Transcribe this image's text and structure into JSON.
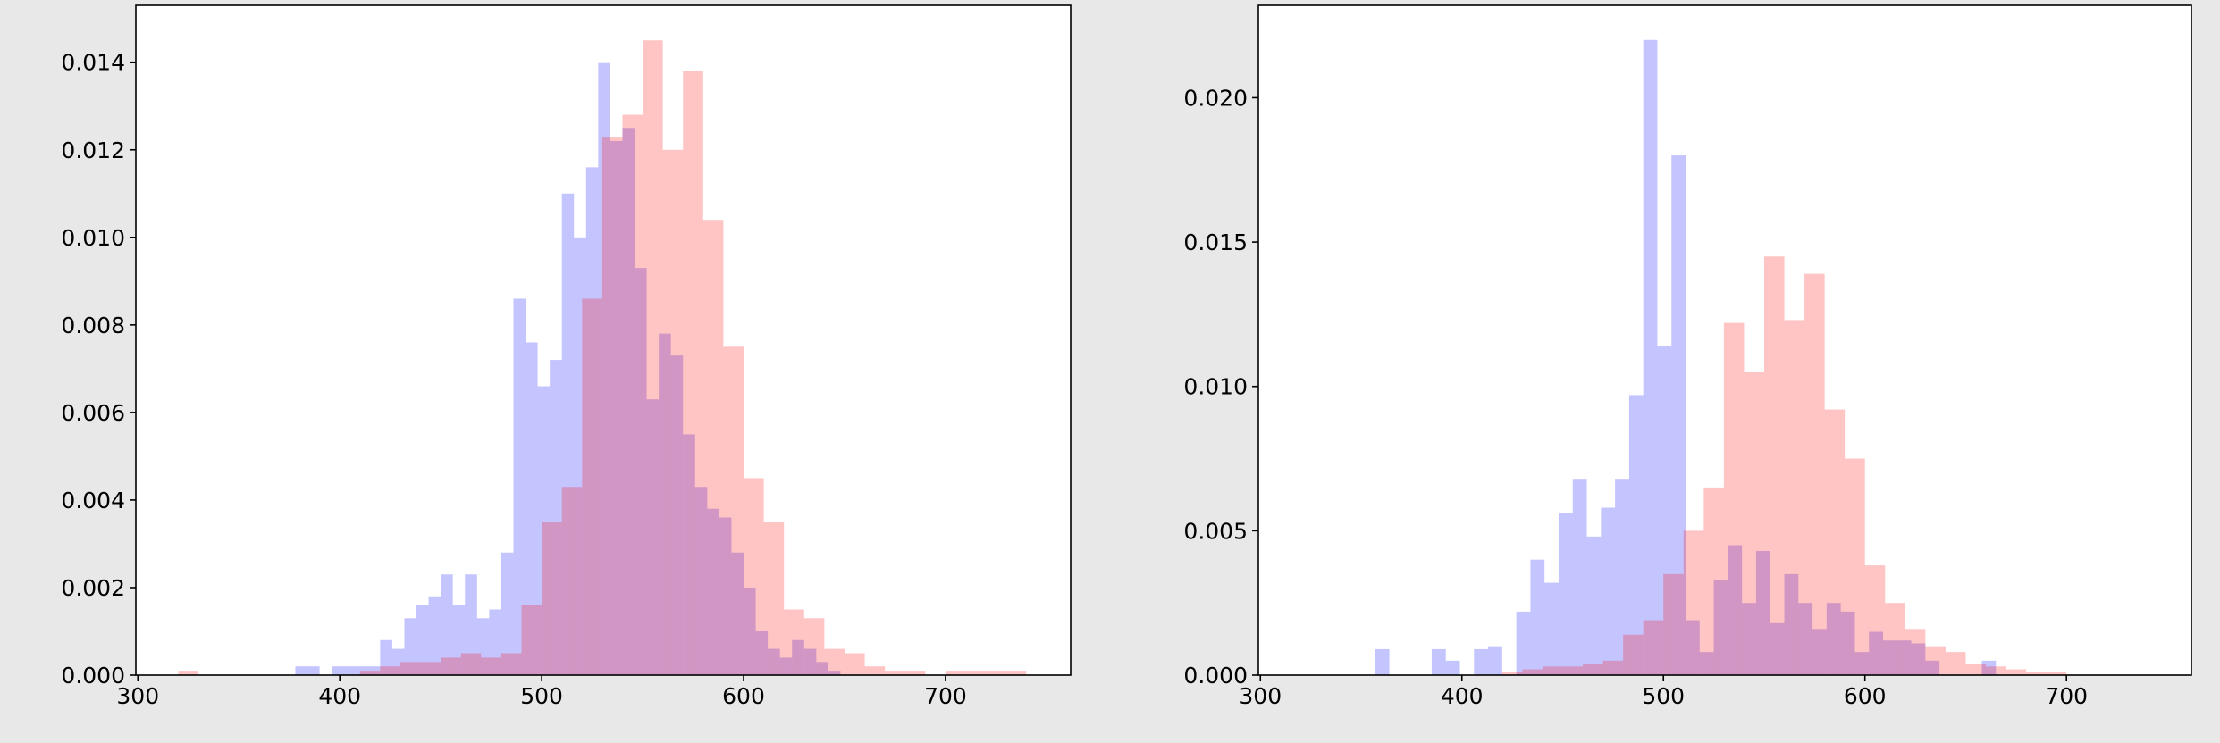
{
  "chart_data": [
    {
      "type": "histogram",
      "xlim": [
        299,
        762
      ],
      "ylim": [
        0,
        0.0153
      ],
      "xticks": [
        300,
        400,
        500,
        600,
        700
      ],
      "yticks": [
        {
          "value": 0,
          "label": "0.000"
        },
        {
          "value": 0.002,
          "label": "0.002"
        },
        {
          "value": 0.004,
          "label": "0.004"
        },
        {
          "value": 0.006,
          "label": "0.006"
        },
        {
          "value": 0.008,
          "label": "0.008"
        },
        {
          "value": 0.01,
          "label": "0.010"
        },
        {
          "value": 0.012,
          "label": "0.012"
        },
        {
          "value": 0.014,
          "label": "0.014"
        }
      ],
      "series": [
        {
          "color": "#0000ff",
          "bins": [
            378,
            384,
            390,
            396,
            402,
            408,
            414,
            420,
            426,
            432,
            438,
            444,
            450,
            456,
            462,
            468,
            474,
            480,
            486,
            492,
            498,
            504,
            510,
            516,
            522,
            528,
            534,
            540,
            546,
            552,
            558,
            564,
            570,
            576,
            582,
            588,
            594,
            600,
            606,
            612,
            618,
            624,
            630,
            636,
            642,
            648
          ],
          "values": [
            0.0002,
            0.0002,
            0,
            0.0002,
            0.0002,
            0.0002,
            0.0002,
            0.0008,
            0.0006,
            0.0013,
            0.0016,
            0.0018,
            0.0023,
            0.0016,
            0.0023,
            0.0013,
            0.0015,
            0.0028,
            0.0086,
            0.0076,
            0.0066,
            0.0072,
            0.011,
            0.01,
            0.0116,
            0.014,
            0.0122,
            0.0125,
            0.0093,
            0.0063,
            0.0078,
            0.0073,
            0.0055,
            0.0043,
            0.0038,
            0.0036,
            0.0028,
            0.002,
            0.001,
            0.0006,
            0.0004,
            0.0008,
            0.0006,
            0.0003,
            0.0001
          ]
        },
        {
          "color": "#ff0000",
          "bins": [
            320,
            330,
            340,
            350,
            360,
            370,
            380,
            390,
            400,
            410,
            420,
            430,
            440,
            450,
            460,
            470,
            480,
            490,
            500,
            510,
            520,
            530,
            540,
            550,
            560,
            570,
            580,
            590,
            600,
            610,
            620,
            630,
            640,
            650,
            660,
            670,
            680,
            690,
            700,
            710,
            720,
            730,
            740
          ],
          "values": [
            0.0001,
            0,
            0,
            0,
            0,
            0,
            0,
            0,
            0,
            0.0001,
            0.0002,
            0.0003,
            0.0003,
            0.0004,
            0.0005,
            0.0004,
            0.0005,
            0.0016,
            0.0035,
            0.0043,
            0.0086,
            0.0123,
            0.0128,
            0.0145,
            0.012,
            0.0138,
            0.0104,
            0.0075,
            0.0045,
            0.0035,
            0.0015,
            0.0013,
            0.0006,
            0.0005,
            0.0002,
            0.0001,
            0.0001,
            0,
            0.0001,
            0.0001,
            0.0001,
            0.0001
          ]
        }
      ]
    },
    {
      "type": "histogram",
      "xlim": [
        299,
        762
      ],
      "ylim": [
        0,
        0.0232
      ],
      "xticks": [
        300,
        400,
        500,
        600,
        700
      ],
      "yticks": [
        {
          "value": 0,
          "label": "0.000"
        },
        {
          "value": 0.005,
          "label": "0.005"
        },
        {
          "value": 0.01,
          "label": "0.010"
        },
        {
          "value": 0.015,
          "label": "0.015"
        },
        {
          "value": 0.02,
          "label": "0.020"
        }
      ],
      "series": [
        {
          "color": "#0000ff",
          "bins": [
            357,
            364,
            371,
            378,
            385,
            392,
            399,
            406,
            413,
            420,
            427,
            434,
            441,
            448,
            455,
            462,
            469,
            476,
            483,
            490,
            497,
            504,
            511,
            518,
            525,
            532,
            539,
            546,
            553,
            560,
            567,
            574,
            581,
            588,
            595,
            602,
            609,
            616,
            623,
            630,
            637,
            644,
            651,
            658,
            665
          ],
          "values": [
            0.0009,
            0,
            0,
            0,
            0.0009,
            0.0005,
            0,
            0.0009,
            0.001,
            0,
            0.0022,
            0.004,
            0.0032,
            0.0056,
            0.0068,
            0.0048,
            0.0058,
            0.0068,
            0.0097,
            0.022,
            0.0114,
            0.018,
            0.0019,
            0.0008,
            0.0033,
            0.0045,
            0.0025,
            0.0043,
            0.0018,
            0.0035,
            0.0025,
            0.0016,
            0.0025,
            0.0022,
            0.0008,
            0.0015,
            0.0012,
            0.0012,
            0.0011,
            0.0005,
            0,
            0,
            0,
            0.0005
          ]
        },
        {
          "color": "#ff0000",
          "bins": [
            420,
            430,
            440,
            450,
            460,
            470,
            480,
            490,
            500,
            510,
            520,
            530,
            540,
            550,
            560,
            570,
            580,
            590,
            600,
            610,
            620,
            630,
            640,
            650,
            660,
            670,
            680,
            690,
            700
          ],
          "values": [
            0.0001,
            0.0002,
            0.0003,
            0.0003,
            0.0004,
            0.0005,
            0.0014,
            0.0019,
            0.0035,
            0.005,
            0.0065,
            0.0122,
            0.0105,
            0.0145,
            0.0123,
            0.0139,
            0.0092,
            0.0075,
            0.0038,
            0.0025,
            0.0016,
            0.001,
            0.0008,
            0.0004,
            0.0003,
            0.0002,
            0.0001,
            0.0001
          ]
        }
      ]
    }
  ]
}
